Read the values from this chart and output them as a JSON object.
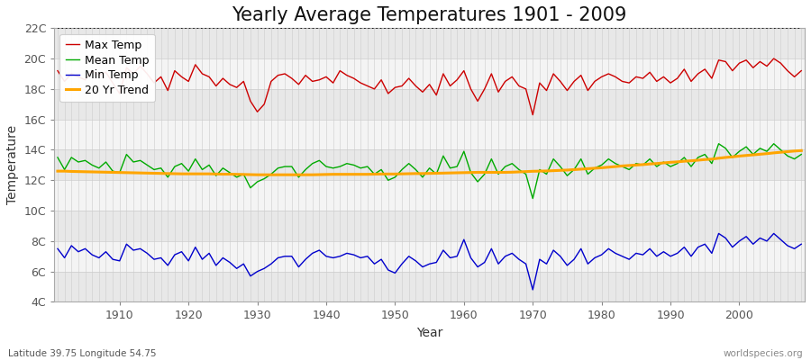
{
  "title": "Yearly Average Temperatures 1901 - 2009",
  "xlabel": "Year",
  "ylabel": "Temperature",
  "lat_label": "Latitude 39.75 Longitude 54.75",
  "source_label": "worldspecies.org",
  "years": [
    1901,
    1902,
    1903,
    1904,
    1905,
    1906,
    1907,
    1908,
    1909,
    1910,
    1911,
    1912,
    1913,
    1914,
    1915,
    1916,
    1917,
    1918,
    1919,
    1920,
    1921,
    1922,
    1923,
    1924,
    1925,
    1926,
    1927,
    1928,
    1929,
    1930,
    1931,
    1932,
    1933,
    1934,
    1935,
    1936,
    1937,
    1938,
    1939,
    1940,
    1941,
    1942,
    1943,
    1944,
    1945,
    1946,
    1947,
    1948,
    1949,
    1950,
    1951,
    1952,
    1953,
    1954,
    1955,
    1956,
    1957,
    1958,
    1959,
    1960,
    1961,
    1962,
    1963,
    1964,
    1965,
    1966,
    1967,
    1968,
    1969,
    1970,
    1971,
    1972,
    1973,
    1974,
    1975,
    1976,
    1977,
    1978,
    1979,
    1980,
    1981,
    1982,
    1983,
    1984,
    1985,
    1986,
    1987,
    1988,
    1989,
    1990,
    1991,
    1992,
    1993,
    1994,
    1995,
    1996,
    1997,
    1998,
    1999,
    2000,
    2001,
    2002,
    2003,
    2004,
    2005,
    2006,
    2007,
    2008,
    2009
  ],
  "max_temp": [
    19.2,
    18.5,
    19.0,
    18.8,
    18.6,
    19.2,
    18.9,
    19.1,
    18.4,
    17.7,
    19.4,
    19.0,
    19.5,
    19.0,
    18.4,
    18.8,
    17.9,
    19.2,
    18.8,
    18.5,
    19.6,
    19.0,
    18.8,
    18.2,
    18.7,
    18.3,
    18.1,
    18.5,
    17.2,
    16.5,
    17.0,
    18.5,
    18.9,
    19.0,
    18.7,
    18.3,
    18.9,
    18.5,
    18.6,
    18.8,
    18.4,
    19.2,
    18.9,
    18.7,
    18.4,
    18.2,
    18.0,
    18.6,
    17.7,
    18.1,
    18.2,
    18.7,
    18.2,
    17.8,
    18.3,
    17.6,
    19.0,
    18.2,
    18.6,
    19.2,
    18.0,
    17.2,
    18.0,
    19.0,
    17.8,
    18.5,
    18.8,
    18.2,
    18.0,
    16.3,
    18.4,
    17.9,
    19.0,
    18.5,
    17.9,
    18.5,
    18.9,
    17.9,
    18.5,
    18.8,
    19.0,
    18.8,
    18.5,
    18.4,
    18.8,
    18.7,
    19.1,
    18.5,
    18.8,
    18.4,
    18.7,
    19.3,
    18.5,
    19.0,
    19.3,
    18.7,
    19.9,
    19.8,
    19.2,
    19.7,
    19.9,
    19.4,
    19.8,
    19.5,
    20.0,
    19.7,
    19.2,
    18.8,
    19.2
  ],
  "mean_temp": [
    13.5,
    12.7,
    13.5,
    13.2,
    13.3,
    13.0,
    12.8,
    13.2,
    12.6,
    12.5,
    13.7,
    13.2,
    13.3,
    13.0,
    12.7,
    12.8,
    12.2,
    12.9,
    13.1,
    12.6,
    13.4,
    12.7,
    13.0,
    12.3,
    12.8,
    12.5,
    12.2,
    12.4,
    11.5,
    11.9,
    12.1,
    12.4,
    12.8,
    12.9,
    12.9,
    12.2,
    12.7,
    13.1,
    13.3,
    12.9,
    12.8,
    12.9,
    13.1,
    13.0,
    12.8,
    12.9,
    12.4,
    12.7,
    12.0,
    12.2,
    12.7,
    13.1,
    12.7,
    12.2,
    12.8,
    12.4,
    13.6,
    12.8,
    12.9,
    13.9,
    12.5,
    11.9,
    12.4,
    13.4,
    12.4,
    12.9,
    13.1,
    12.7,
    12.4,
    10.8,
    12.7,
    12.4,
    13.4,
    12.9,
    12.3,
    12.7,
    13.4,
    12.4,
    12.8,
    13.0,
    13.4,
    13.1,
    12.9,
    12.7,
    13.1,
    13.0,
    13.4,
    12.9,
    13.2,
    12.9,
    13.1,
    13.5,
    12.9,
    13.5,
    13.7,
    13.1,
    14.4,
    14.1,
    13.5,
    13.9,
    14.2,
    13.7,
    14.1,
    13.9,
    14.4,
    14.0,
    13.6,
    13.4,
    13.7
  ],
  "min_temp": [
    7.5,
    6.9,
    7.7,
    7.3,
    7.5,
    7.1,
    6.9,
    7.3,
    6.8,
    6.7,
    7.8,
    7.4,
    7.5,
    7.2,
    6.8,
    6.9,
    6.4,
    7.1,
    7.3,
    6.7,
    7.6,
    6.8,
    7.2,
    6.4,
    6.9,
    6.6,
    6.2,
    6.5,
    5.7,
    6.0,
    6.2,
    6.5,
    6.9,
    7.0,
    7.0,
    6.3,
    6.8,
    7.2,
    7.4,
    7.0,
    6.9,
    7.0,
    7.2,
    7.1,
    6.9,
    7.0,
    6.5,
    6.8,
    6.1,
    5.9,
    6.5,
    7.0,
    6.7,
    6.3,
    6.5,
    6.6,
    7.4,
    6.9,
    7.0,
    8.1,
    6.9,
    6.3,
    6.6,
    7.5,
    6.5,
    7.0,
    7.2,
    6.8,
    6.5,
    4.8,
    6.8,
    6.5,
    7.4,
    7.0,
    6.4,
    6.8,
    7.5,
    6.5,
    6.9,
    7.1,
    7.5,
    7.2,
    7.0,
    6.8,
    7.2,
    7.1,
    7.5,
    7.0,
    7.3,
    7.0,
    7.2,
    7.6,
    7.0,
    7.6,
    7.8,
    7.2,
    8.5,
    8.2,
    7.6,
    8.0,
    8.3,
    7.8,
    8.2,
    8.0,
    8.5,
    8.1,
    7.7,
    7.5,
    7.8
  ],
  "trend": [
    12.6,
    12.6,
    12.58,
    12.57,
    12.56,
    12.55,
    12.54,
    12.53,
    12.52,
    12.51,
    12.5,
    12.49,
    12.48,
    12.47,
    12.46,
    12.45,
    12.44,
    12.43,
    12.42,
    12.42,
    12.42,
    12.42,
    12.42,
    12.41,
    12.4,
    12.4,
    12.39,
    12.38,
    12.37,
    12.36,
    12.36,
    12.36,
    12.36,
    12.36,
    12.36,
    12.36,
    12.36,
    12.36,
    12.37,
    12.38,
    12.39,
    12.39,
    12.39,
    12.39,
    12.39,
    12.39,
    12.4,
    12.41,
    12.41,
    12.41,
    12.42,
    12.43,
    12.44,
    12.44,
    12.45,
    12.46,
    12.47,
    12.48,
    12.49,
    12.5,
    12.51,
    12.52,
    12.52,
    12.52,
    12.52,
    12.52,
    12.53,
    12.55,
    12.57,
    12.59,
    12.6,
    12.61,
    12.63,
    12.65,
    12.67,
    12.7,
    12.73,
    12.76,
    12.79,
    12.82,
    12.86,
    12.9,
    12.94,
    12.97,
    13.0,
    13.03,
    13.07,
    13.1,
    13.14,
    13.18,
    13.21,
    13.25,
    13.28,
    13.32,
    13.36,
    13.39,
    13.45,
    13.5,
    13.54,
    13.59,
    13.63,
    13.67,
    13.71,
    13.75,
    13.8,
    13.84,
    13.88,
    13.92,
    13.95
  ],
  "ylim": [
    4,
    22
  ],
  "yticks": [
    4,
    6,
    8,
    10,
    12,
    14,
    16,
    18,
    20,
    22
  ],
  "ytick_labels": [
    "4C",
    "6C",
    "8C",
    "10C",
    "12C",
    "14C",
    "16C",
    "18C",
    "20C",
    "22C"
  ],
  "xticks": [
    1910,
    1920,
    1930,
    1940,
    1950,
    1960,
    1970,
    1980,
    1990,
    2000
  ],
  "max_color": "#cc0000",
  "mean_color": "#00aa00",
  "min_color": "#0000cc",
  "trend_color": "#ffa500",
  "fig_bg_color": "#ffffff",
  "plot_bg_color": "#f0f0f0",
  "title_fontsize": 15,
  "axis_label_fontsize": 10,
  "tick_fontsize": 9,
  "legend_fontsize": 9,
  "dotted_line_y": 22,
  "linewidth": 1.0,
  "trend_linewidth": 2.2
}
